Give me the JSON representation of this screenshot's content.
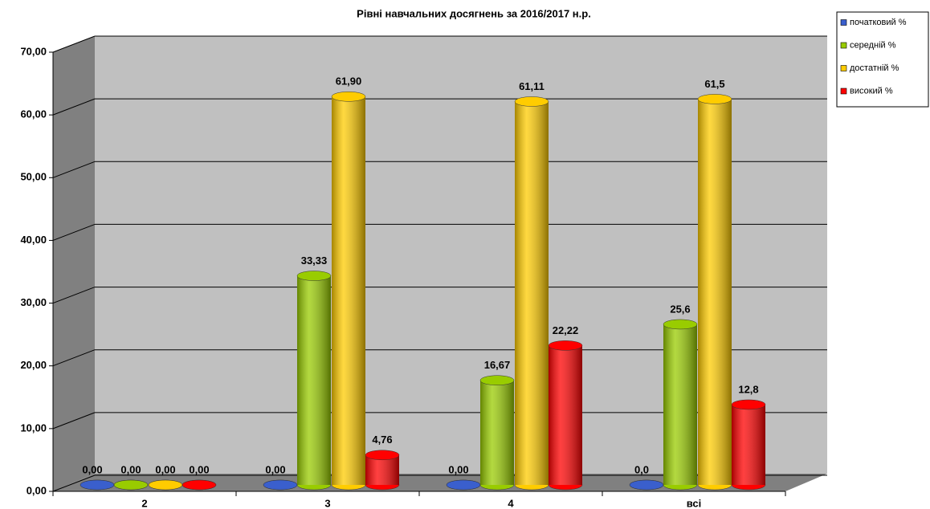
{
  "chart_data": {
    "type": "bar3d",
    "title": "Рівні навчальних досягнень за  2016/2017 н.р.",
    "categories": [
      "2",
      "3",
      "4",
      "всі"
    ],
    "series": [
      {
        "name": "початковий %",
        "color": "#3a5fcd",
        "values": [
          0,
          0,
          0,
          0
        ],
        "value_labels": [
          "0,00",
          "0,00",
          "0,00",
          "0,0"
        ]
      },
      {
        "name": "середній %",
        "color": "#99cc00",
        "values": [
          0,
          33.33,
          16.67,
          25.6
        ],
        "value_labels": [
          "0,00",
          "33,33",
          "16,67",
          "25,6"
        ]
      },
      {
        "name": "достатній %",
        "color": "#ffcc00",
        "values": [
          0,
          61.9,
          61.11,
          61.5
        ],
        "value_labels": [
          "0,00",
          "61,90",
          "61,11",
          "61,5"
        ]
      },
      {
        "name": "високий %",
        "color": "#ff0000",
        "values": [
          0,
          4.76,
          22.22,
          12.8
        ],
        "value_labels": [
          "0,00",
          "4,76",
          "22,22",
          "12,8"
        ]
      }
    ],
    "ylim": [
      0,
      70
    ],
    "yticks": [
      {
        "value": 0,
        "label": "0,00"
      },
      {
        "value": 10,
        "label": "10,00"
      },
      {
        "value": 20,
        "label": "20,00"
      },
      {
        "value": 30,
        "label": "30,00"
      },
      {
        "value": 40,
        "label": "40,00"
      },
      {
        "value": 50,
        "label": "50,00"
      },
      {
        "value": 60,
        "label": "60,00"
      },
      {
        "value": 70,
        "label": "70,00"
      }
    ],
    "grid": true
  }
}
